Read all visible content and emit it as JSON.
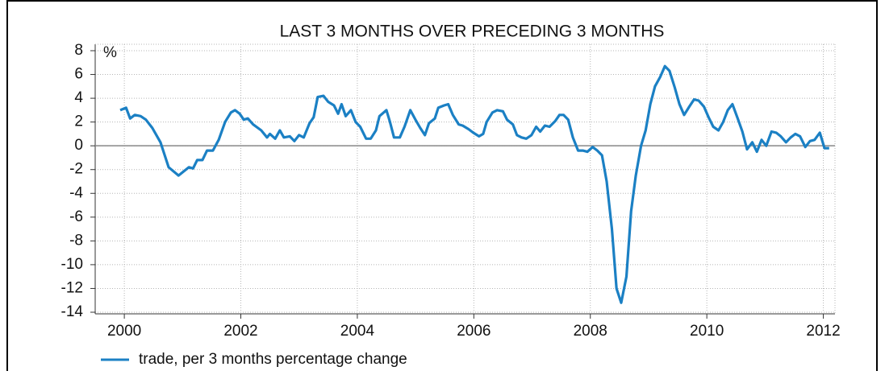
{
  "chart_data": {
    "type": "line",
    "title": "LAST 3 MONTHS OVER PRECEDING 3 MONTHS",
    "y_label": "%",
    "x": [
      1999.93,
      2000.03,
      2000.1,
      2000.18,
      2000.28,
      2000.37,
      2000.48,
      2000.62,
      2000.76,
      2000.93,
      2001.11,
      2001.18,
      2001.25,
      2001.34,
      2001.42,
      2001.52,
      2001.62,
      2001.73,
      2001.83,
      2001.9,
      2001.98,
      2002.05,
      2002.12,
      2002.21,
      2002.35,
      2002.45,
      2002.5,
      2002.59,
      2002.67,
      2002.74,
      2002.84,
      2002.92,
      2003.0,
      2003.08,
      2003.18,
      2003.25,
      2003.32,
      2003.42,
      2003.5,
      2003.6,
      2003.67,
      2003.73,
      2003.8,
      2003.89,
      2003.97,
      2004.05,
      2004.15,
      2004.23,
      2004.32,
      2004.38,
      2004.5,
      2004.56,
      2004.63,
      2004.73,
      2004.81,
      2004.91,
      2005.01,
      2005.08,
      2005.16,
      2005.23,
      2005.33,
      2005.39,
      2005.49,
      2005.56,
      2005.64,
      2005.74,
      2005.81,
      2005.91,
      2005.99,
      2006.09,
      2006.16,
      2006.22,
      2006.32,
      2006.4,
      2006.5,
      2006.57,
      2006.67,
      2006.74,
      2006.82,
      2006.9,
      2006.99,
      2007.07,
      2007.14,
      2007.22,
      2007.3,
      2007.4,
      2007.47,
      2007.54,
      2007.62,
      2007.7,
      2007.79,
      2007.87,
      2007.95,
      2008.04,
      2008.12,
      2008.2,
      2008.28,
      2008.37,
      2008.45,
      2008.53,
      2008.62,
      2008.7,
      2008.78,
      2008.87,
      2008.95,
      2009.03,
      2009.11,
      2009.2,
      2009.28,
      2009.36,
      2009.45,
      2009.53,
      2009.61,
      2009.7,
      2009.78,
      2009.86,
      2009.95,
      2010.03,
      2010.11,
      2010.2,
      2010.28,
      2010.36,
      2010.44,
      2010.53,
      2010.61,
      2010.69,
      2010.78,
      2010.86,
      2010.94,
      2011.02,
      2011.11,
      2011.19,
      2011.27,
      2011.36,
      2011.44,
      2011.52,
      2011.6,
      2011.69,
      2011.77,
      2011.85,
      2011.94,
      2012.02,
      2012.1
    ],
    "series": [
      {
        "name": "trade, per 3 months percentage change",
        "color": "#1b80c4",
        "values": [
          3.0,
          3.2,
          2.3,
          2.6,
          2.5,
          2.2,
          1.5,
          0.3,
          -1.8,
          -2.5,
          -1.8,
          -1.9,
          -1.2,
          -1.2,
          -0.4,
          -0.4,
          0.5,
          2.0,
          2.8,
          3.0,
          2.7,
          2.2,
          2.3,
          1.8,
          1.3,
          0.7,
          1.0,
          0.6,
          1.3,
          0.7,
          0.8,
          0.4,
          0.9,
          0.7,
          1.9,
          2.4,
          4.1,
          4.2,
          3.7,
          3.4,
          2.7,
          3.5,
          2.5,
          3.0,
          2.0,
          1.6,
          0.6,
          0.6,
          1.3,
          2.5,
          3.0,
          2.0,
          0.7,
          0.7,
          1.6,
          3.0,
          2.1,
          1.5,
          0.9,
          1.9,
          2.3,
          3.2,
          3.4,
          3.5,
          2.6,
          1.8,
          1.7,
          1.4,
          1.1,
          0.8,
          1.0,
          2.0,
          2.8,
          3.0,
          2.9,
          2.2,
          1.8,
          0.9,
          0.7,
          0.6,
          0.9,
          1.6,
          1.2,
          1.7,
          1.6,
          2.1,
          2.6,
          2.6,
          2.2,
          0.7,
          -0.4,
          -0.4,
          -0.5,
          -0.1,
          -0.4,
          -0.8,
          -3.0,
          -7.0,
          -12.0,
          -13.2,
          -11.0,
          -5.5,
          -2.5,
          0.0,
          1.3,
          3.5,
          5.0,
          5.8,
          6.7,
          6.3,
          4.9,
          3.5,
          2.6,
          3.3,
          3.9,
          3.8,
          3.3,
          2.4,
          1.6,
          1.3,
          2.0,
          3.0,
          3.5,
          2.3,
          1.2,
          -0.3,
          0.3,
          -0.5,
          0.5,
          0.0,
          1.2,
          1.1,
          0.8,
          0.3,
          0.7,
          1.0,
          0.8,
          -0.1,
          0.4,
          0.5,
          1.1,
          -0.2,
          -0.2
        ]
      }
    ],
    "xlim": [
      1999.5,
      2012.2
    ],
    "xticks": [
      2000,
      2002,
      2004,
      2006,
      2008,
      2010,
      2012
    ],
    "ylim": [
      -14,
      8
    ],
    "yticks": [
      -14,
      -12,
      -10,
      -8,
      -6,
      -4,
      -2,
      0,
      2,
      4,
      6,
      8
    ],
    "grid": true
  }
}
